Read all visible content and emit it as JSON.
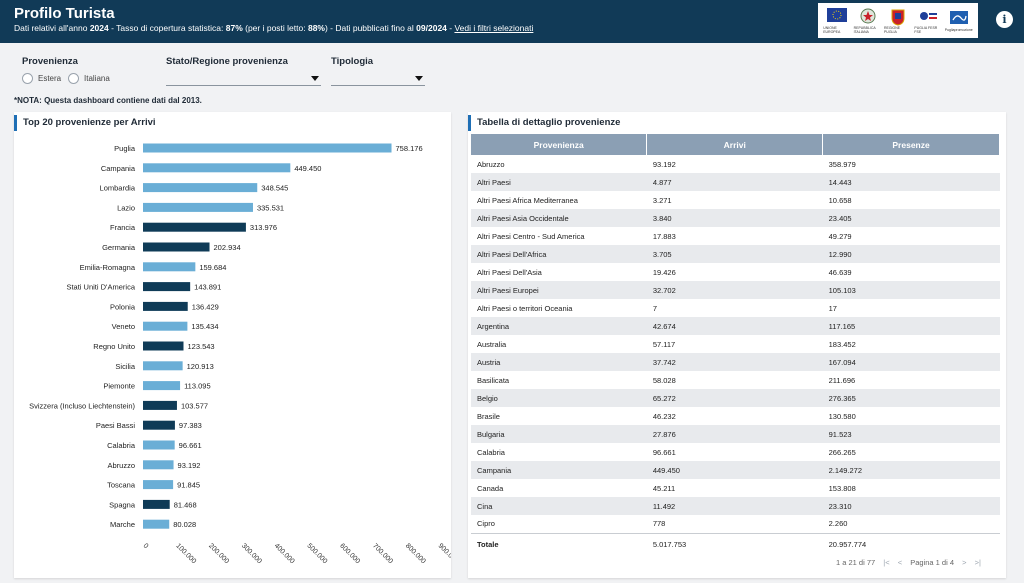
{
  "header": {
    "title": "Profilo Turista",
    "subtitle_prefix": "Dati relativi all'anno ",
    "year": "2024",
    "coverage_label": " - Tasso di copertura statistica: ",
    "coverage_value": "87%",
    "beds_label": " (per i posti letto: ",
    "beds_value": "88%",
    "published_label": ") - Dati pubblicati fino al ",
    "published_value": "09/2024",
    "separator": " - ",
    "filters_link": "Vedi i filtri selezionati",
    "logos": [
      "UNIONE EUROPEA",
      "REPUBBLICA ITALIANA",
      "REGIONE PUGLIA",
      "PUGLIA FESR FSE",
      "Pugliapromozione"
    ]
  },
  "filters": {
    "provenienza_label": "Provenienza",
    "radio_estera": "Estera",
    "radio_italiana": "Italiana",
    "stato_label": "Stato/Regione provenienza",
    "tipologia_label": "Tipologia"
  },
  "note": "*NOTA: Questa dashboard contiene dati dal 2013.",
  "chart_panel": {
    "title": "Top 20 provenienze per Arrivi"
  },
  "chart_data": {
    "type": "bar",
    "orientation": "horizontal",
    "title": "Top 20 provenienze per Arrivi",
    "categories": [
      "Puglia",
      "Campania",
      "Lombardia",
      "Lazio",
      "Francia",
      "Germania",
      "Emilia-Romagna",
      "Stati Uniti D'America",
      "Polonia",
      "Veneto",
      "Regno Unito",
      "Sicilia",
      "Piemonte",
      "Svizzera (Incluso Liechtenstein)",
      "Paesi Bassi",
      "Calabria",
      "Abruzzo",
      "Toscana",
      "Spagna",
      "Marche"
    ],
    "values": [
      758176,
      449450,
      348545,
      335531,
      313976,
      202934,
      159684,
      143891,
      136429,
      135434,
      123543,
      120913,
      113095,
      103577,
      97383,
      96661,
      93192,
      91845,
      81468,
      80028
    ],
    "value_labels": [
      "758.176",
      "449.450",
      "348.545",
      "335.531",
      "313.976",
      "202.934",
      "159.684",
      "143.891",
      "136.429",
      "135.434",
      "123.543",
      "120.913",
      "113.095",
      "103.577",
      "97.383",
      "96.661",
      "93.192",
      "91.845",
      "81.468",
      "80.028"
    ],
    "foreign": [
      false,
      false,
      false,
      false,
      true,
      true,
      false,
      true,
      true,
      false,
      true,
      false,
      false,
      true,
      true,
      false,
      false,
      false,
      true,
      false
    ],
    "xlim": [
      0,
      900000
    ],
    "x_ticks": [
      "0",
      "100.000",
      "200.000",
      "300.000",
      "400.000",
      "500.000",
      "600.000",
      "700.000",
      "800.000",
      "900.000"
    ],
    "colors": {
      "italian": "#6aaed6",
      "foreign": "#0f3b57"
    }
  },
  "table_panel": {
    "title": "Tabella di dettaglio provenienze",
    "columns": [
      "Provenienza",
      "Arrivi",
      "Presenze"
    ],
    "rows": [
      [
        "Abruzzo",
        "93.192",
        "358.979"
      ],
      [
        "Altri Paesi",
        "4.877",
        "14.443"
      ],
      [
        "Altri Paesi Africa Mediterranea",
        "3.271",
        "10.658"
      ],
      [
        "Altri Paesi Asia Occidentale",
        "3.840",
        "23.405"
      ],
      [
        "Altri Paesi Centro - Sud America",
        "17.883",
        "49.279"
      ],
      [
        "Altri Paesi Dell'Africa",
        "3.705",
        "12.990"
      ],
      [
        "Altri Paesi Dell'Asia",
        "19.426",
        "46.639"
      ],
      [
        "Altri Paesi Europei",
        "32.702",
        "105.103"
      ],
      [
        "Altri Paesi o territori Oceania",
        "7",
        "17"
      ],
      [
        "Argentina",
        "42.674",
        "117.165"
      ],
      [
        "Australia",
        "57.117",
        "183.452"
      ],
      [
        "Austria",
        "37.742",
        "167.094"
      ],
      [
        "Basilicata",
        "58.028",
        "211.696"
      ],
      [
        "Belgio",
        "65.272",
        "276.365"
      ],
      [
        "Brasile",
        "46.232",
        "130.580"
      ],
      [
        "Bulgaria",
        "27.876",
        "91.523"
      ],
      [
        "Calabria",
        "96.661",
        "266.265"
      ],
      [
        "Campania",
        "449.450",
        "2.149.272"
      ],
      [
        "Canada",
        "45.211",
        "153.808"
      ],
      [
        "Cina",
        "11.492",
        "23.310"
      ],
      [
        "Cipro",
        "778",
        "2.260"
      ]
    ],
    "total": [
      "Totale",
      "5.017.753",
      "20.957.774"
    ],
    "pager": {
      "range": "1 a 21 di 77",
      "page": "Pagina 1 di 4"
    }
  }
}
